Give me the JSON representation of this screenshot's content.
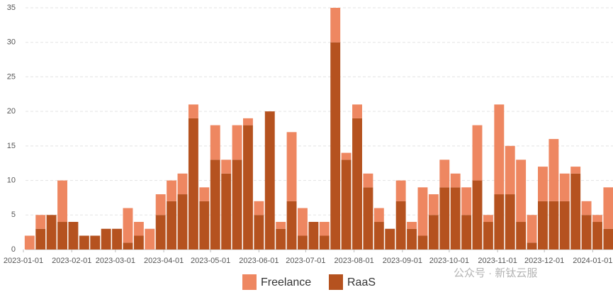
{
  "chart_data": {
    "type": "stacked-bar",
    "x": [
      "2023-01-05",
      "2023-01-12",
      "2023-01-19",
      "2023-01-26",
      "2023-02-02",
      "2023-02-09",
      "2023-02-16",
      "2023-02-23",
      "2023-03-02",
      "2023-03-09",
      "2023-03-16",
      "2023-03-23",
      "2023-03-30",
      "2023-04-06",
      "2023-04-13",
      "2023-04-20",
      "2023-04-27",
      "2023-05-04",
      "2023-05-11",
      "2023-05-18",
      "2023-05-25",
      "2023-06-01",
      "2023-06-08",
      "2023-06-15",
      "2023-06-22",
      "2023-06-29",
      "2023-07-06",
      "2023-07-13",
      "2023-07-20",
      "2023-07-27",
      "2023-08-03",
      "2023-08-10",
      "2023-08-17",
      "2023-08-24",
      "2023-08-31",
      "2023-09-07",
      "2023-09-14",
      "2023-09-21",
      "2023-09-28",
      "2023-10-05",
      "2023-10-12",
      "2023-10-19",
      "2023-10-26",
      "2023-11-02",
      "2023-11-09",
      "2023-11-16",
      "2023-11-23",
      "2023-11-30",
      "2023-12-07",
      "2023-12-14",
      "2023-12-21",
      "2023-12-28",
      "2024-01-04",
      "2024-01-11"
    ],
    "series": [
      {
        "name": "Freelance",
        "color": "#ee8761",
        "values": [
          2,
          2,
          0,
          6,
          0,
          0,
          0,
          0,
          0,
          5,
          2,
          3,
          3,
          3,
          3,
          2,
          2,
          5,
          2,
          5,
          1,
          2,
          0,
          1,
          10,
          4,
          0,
          2,
          5,
          1,
          2,
          2,
          2,
          0,
          3,
          1,
          7,
          3,
          4,
          2,
          4,
          8,
          1,
          13,
          7,
          9,
          4,
          5,
          9,
          4,
          1,
          2,
          1,
          6
        ]
      },
      {
        "name": "RaaS",
        "color": "#b5521f",
        "values": [
          0,
          3,
          5,
          4,
          4,
          2,
          2,
          3,
          3,
          1,
          2,
          0,
          5,
          7,
          8,
          19,
          7,
          13,
          11,
          13,
          18,
          5,
          20,
          3,
          7,
          2,
          4,
          2,
          30,
          13,
          19,
          9,
          4,
          3,
          7,
          3,
          2,
          5,
          9,
          9,
          5,
          10,
          4,
          8,
          8,
          4,
          1,
          7,
          7,
          7,
          11,
          5,
          4,
          3
        ]
      }
    ],
    "xlim": [
      "2023-01-01",
      "2024-01-14"
    ],
    "xticks": [
      "2023-01-01",
      "2023-02-01",
      "2023-03-01",
      "2023-04-01",
      "2023-05-01",
      "2023-06-01",
      "2023-07-01",
      "2023-08-01",
      "2023-09-01",
      "2023-10-01",
      "2023-11-01",
      "2023-12-01",
      "2024-01-01"
    ],
    "ylim": [
      0,
      35
    ],
    "yticks": [
      0,
      5,
      10,
      15,
      20,
      25,
      30,
      35
    ],
    "grid": true,
    "legend": "bottom"
  },
  "watermark": "公众号 · 新钛云服"
}
